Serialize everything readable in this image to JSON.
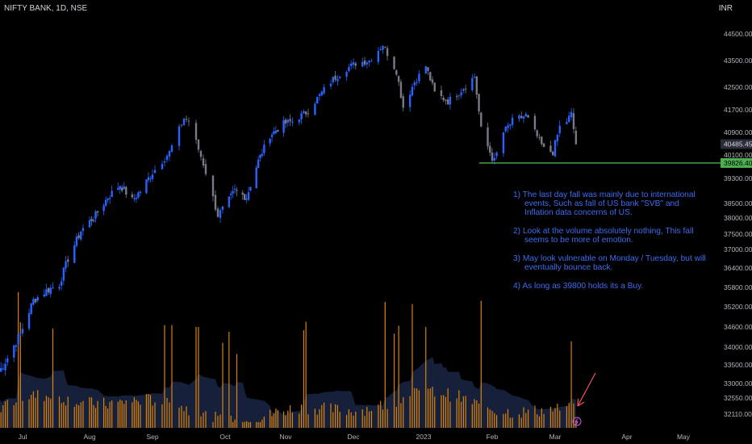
{
  "header": {
    "symbol": "NIFTY BANK, 1D, NSE",
    "currency": "INR"
  },
  "chart_data": {
    "type": "candlestick",
    "title": "NIFTY BANK, 1D, NSE",
    "y_unit": "INR",
    "yticks": [
      44500,
      43500,
      42500,
      41700,
      40900,
      40100,
      39300,
      38500,
      38000,
      37500,
      37000,
      36400,
      35800,
      35200,
      34600,
      34000,
      33500,
      33000,
      32550,
      32110
    ],
    "xticks": [
      "Jul",
      "Aug",
      "Sep",
      "Oct",
      "Nov",
      "Dec",
      "2023",
      "Feb",
      "Mar",
      "Apr",
      "May"
    ],
    "price_labels": {
      "last": "40485.45",
      "support": "39826.40"
    },
    "support_level": 39826.4,
    "close_path": [
      {
        "d": "2022-06-20",
        "v": 33300
      },
      {
        "d": "2022-06-24",
        "v": 33700
      },
      {
        "d": "2022-06-30",
        "v": 34400
      },
      {
        "d": "2022-07-06",
        "v": 35400
      },
      {
        "d": "2022-07-12",
        "v": 35700
      },
      {
        "d": "2022-07-18",
        "v": 35900
      },
      {
        "d": "2022-07-22",
        "v": 36700
      },
      {
        "d": "2022-07-28",
        "v": 37600
      },
      {
        "d": "2022-08-04",
        "v": 38100
      },
      {
        "d": "2022-08-10",
        "v": 38700
      },
      {
        "d": "2022-08-16",
        "v": 39100
      },
      {
        "d": "2022-08-22",
        "v": 38600
      },
      {
        "d": "2022-08-26",
        "v": 38900
      },
      {
        "d": "2022-09-02",
        "v": 39600
      },
      {
        "d": "2022-09-08",
        "v": 40200
      },
      {
        "d": "2022-09-14",
        "v": 41400
      },
      {
        "d": "2022-09-16",
        "v": 41300
      },
      {
        "d": "2022-09-22",
        "v": 39800
      },
      {
        "d": "2022-09-28",
        "v": 38100
      },
      {
        "d": "2022-09-30",
        "v": 38300
      },
      {
        "d": "2022-10-06",
        "v": 38900
      },
      {
        "d": "2022-10-12",
        "v": 38700
      },
      {
        "d": "2022-10-18",
        "v": 39900
      },
      {
        "d": "2022-10-24",
        "v": 40800
      },
      {
        "d": "2022-10-31",
        "v": 41200
      },
      {
        "d": "2022-11-04",
        "v": 41300
      },
      {
        "d": "2022-11-10",
        "v": 41600
      },
      {
        "d": "2022-11-16",
        "v": 42200
      },
      {
        "d": "2022-11-22",
        "v": 42800
      },
      {
        "d": "2022-11-28",
        "v": 43200
      },
      {
        "d": "2022-12-02",
        "v": 43400
      },
      {
        "d": "2022-12-08",
        "v": 43500
      },
      {
        "d": "2022-12-14",
        "v": 44100
      },
      {
        "d": "2022-12-20",
        "v": 43100
      },
      {
        "d": "2022-12-23",
        "v": 41800
      },
      {
        "d": "2022-12-28",
        "v": 42700
      },
      {
        "d": "2023-01-02",
        "v": 43300
      },
      {
        "d": "2023-01-06",
        "v": 42300
      },
      {
        "d": "2023-01-12",
        "v": 42000
      },
      {
        "d": "2023-01-18",
        "v": 42400
      },
      {
        "d": "2023-01-24",
        "v": 42900
      },
      {
        "d": "2023-01-27",
        "v": 41000
      },
      {
        "d": "2023-02-01",
        "v": 40000
      },
      {
        "d": "2023-02-02",
        "v": 39900
      },
      {
        "d": "2023-02-06",
        "v": 40900
      },
      {
        "d": "2023-02-10",
        "v": 41300
      },
      {
        "d": "2023-02-16",
        "v": 41500
      },
      {
        "d": "2023-02-20",
        "v": 40900
      },
      {
        "d": "2023-02-24",
        "v": 40300
      },
      {
        "d": "2023-02-28",
        "v": 40200
      },
      {
        "d": "2023-03-03",
        "v": 41100
      },
      {
        "d": "2023-03-06",
        "v": 41300
      },
      {
        "d": "2023-03-08",
        "v": 41550
      },
      {
        "d": "2023-03-10",
        "v": 40485
      }
    ],
    "annotations": [
      "1)  The last day fall was mainly due to international events, Such as fall of US bank \"SVB\"  and Inflation data concerns of US.",
      "2)  Look at the volume absolutely nothing, This fall seems to be more of emotion.",
      "3)  May look vulnerable on Monday / Tuesday, but will eventually bounce back.",
      "4)  As long as 39800 holds its a Buy."
    ]
  },
  "colors": {
    "up": "#2962ff",
    "down": "#787b86",
    "volume": "#ff9800",
    "support": "#4caf50",
    "annotation": "#3f6cf0",
    "arrow": "#f7525f"
  }
}
